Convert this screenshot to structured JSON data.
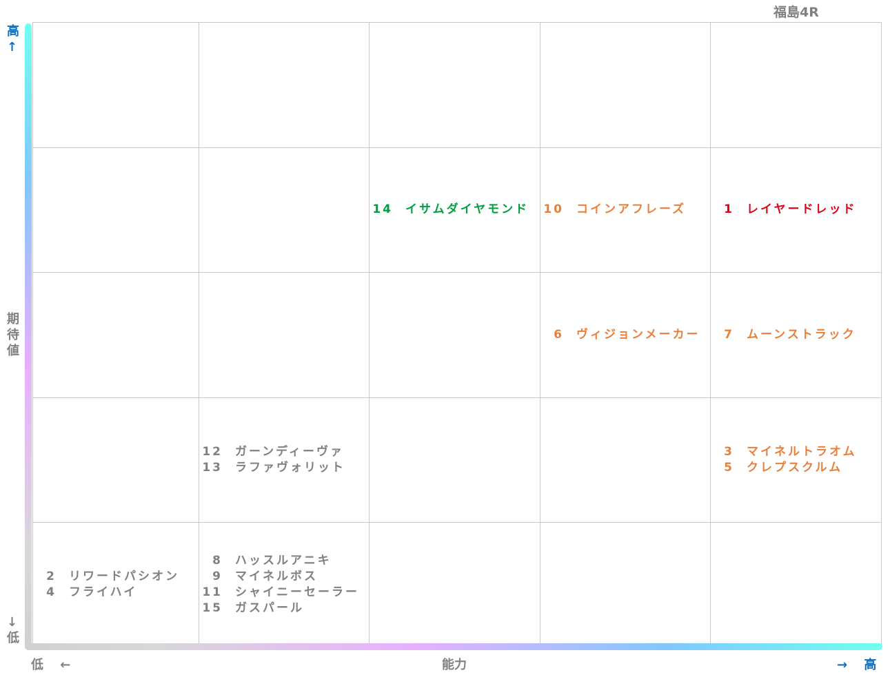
{
  "title": "福島4R",
  "y_axis": {
    "high": "高↑",
    "label": "期待値",
    "low": "↓低"
  },
  "x_axis": {
    "low": "低 ←",
    "label": "能力",
    "high": "→ 高"
  },
  "grid": {
    "rows": [
      {
        "cells": [
          {
            "entries": []
          },
          {
            "entries": []
          },
          {
            "entries": []
          },
          {
            "entries": []
          },
          {
            "entries": []
          }
        ]
      },
      {
        "cells": [
          {
            "entries": []
          },
          {
            "entries": []
          },
          {
            "entries": [
              {
                "number": 14,
                "name": "イサムダイヤモンド",
                "color": "#00a040"
              }
            ]
          },
          {
            "entries": [
              {
                "number": 10,
                "name": "コインアフレーズ",
                "color": "#e8803a"
              }
            ]
          },
          {
            "entries": [
              {
                "number": 1,
                "name": "レイヤードレッド",
                "color": "#e00018"
              }
            ]
          }
        ]
      },
      {
        "cells": [
          {
            "entries": []
          },
          {
            "entries": []
          },
          {
            "entries": []
          },
          {
            "entries": [
              {
                "number": 6,
                "name": "ヴィジョンメーカー",
                "color": "#e8803a"
              }
            ]
          },
          {
            "entries": [
              {
                "number": 7,
                "name": "ムーンストラック",
                "color": "#e8803a"
              }
            ]
          }
        ]
      },
      {
        "cells": [
          {
            "entries": []
          },
          {
            "entries": [
              {
                "number": 12,
                "name": "ガーンディーヴァ",
                "color": "#808080"
              },
              {
                "number": 13,
                "name": "ラファヴォリット",
                "color": "#808080"
              }
            ]
          },
          {
            "entries": []
          },
          {
            "entries": []
          },
          {
            "entries": [
              {
                "number": 3,
                "name": "マイネルトラオム",
                "color": "#e8803a"
              },
              {
                "number": 5,
                "name": "クレプスクルム",
                "color": "#e8803a"
              }
            ]
          }
        ]
      },
      {
        "cells": [
          {
            "entries": [
              {
                "number": 2,
                "name": "リワードパシオン",
                "color": "#808080"
              },
              {
                "number": 4,
                "name": "フライハイ",
                "color": "#808080"
              }
            ]
          },
          {
            "entries": [
              {
                "number": 8,
                "name": "ハッスルアニキ",
                "color": "#808080"
              },
              {
                "number": 9,
                "name": "マイネルボス",
                "color": "#808080"
              },
              {
                "number": 11,
                "name": "シャイニーセーラー",
                "color": "#808080"
              },
              {
                "number": 15,
                "name": "ガスパール",
                "color": "#808080"
              }
            ]
          },
          {
            "entries": []
          },
          {
            "entries": []
          },
          {
            "entries": []
          }
        ]
      }
    ]
  }
}
